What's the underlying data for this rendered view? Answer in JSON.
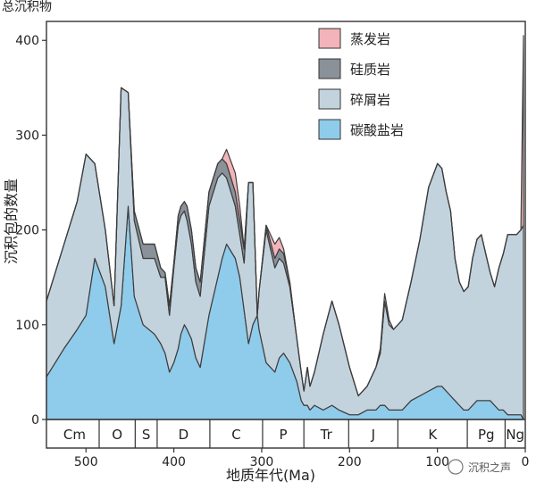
{
  "chart_data": {
    "type": "area",
    "title": "总沉积物",
    "xlabel": "地质年代(Ma)",
    "ylabel": "沉积包的数量",
    "xlim": [
      545,
      0
    ],
    "ylim": [
      0,
      420
    ],
    "xticks": [
      500,
      400,
      300,
      200,
      100,
      0
    ],
    "yticks": [
      0,
      100,
      200,
      300,
      400
    ],
    "xtick_labels": [
      "500",
      "400",
      "300",
      "200",
      "100",
      "0"
    ],
    "ytick_labels": [
      "0",
      "100",
      "200",
      "300",
      "400"
    ],
    "legend_position": "top-right",
    "x": [
      545,
      525,
      510,
      500,
      490,
      478,
      468,
      460,
      452,
      445,
      435,
      422,
      415,
      410,
      405,
      400,
      395,
      392,
      388,
      385,
      380,
      375,
      370,
      360,
      350,
      345,
      340,
      330,
      325,
      320,
      315,
      310,
      305,
      303,
      295,
      285,
      280,
      275,
      268,
      260,
      255,
      252,
      248,
      245,
      240,
      230,
      220,
      212,
      200,
      190,
      180,
      170,
      165,
      160,
      155,
      150,
      140,
      130,
      120,
      110,
      100,
      95,
      90,
      85,
      80,
      75,
      70,
      65,
      60,
      55,
      50,
      45,
      40,
      35,
      30,
      25,
      20,
      15,
      10,
      5,
      2
    ],
    "series": [
      {
        "name": "碳酸盐岩",
        "color": "#8fcbea",
        "values": [
          45,
          75,
          95,
          110,
          170,
          140,
          80,
          120,
          225,
          130,
          100,
          90,
          80,
          70,
          50,
          60,
          75,
          90,
          100,
          95,
          85,
          65,
          55,
          110,
          150,
          170,
          185,
          170,
          150,
          115,
          80,
          100,
          110,
          95,
          60,
          50,
          65,
          70,
          60,
          40,
          20,
          15,
          15,
          10,
          15,
          10,
          15,
          10,
          5,
          5,
          10,
          10,
          15,
          15,
          10,
          10,
          10,
          20,
          25,
          30,
          35,
          35,
          30,
          25,
          20,
          15,
          10,
          10,
          15,
          20,
          20,
          20,
          20,
          15,
          10,
          10,
          5,
          5,
          5,
          5,
          0
        ]
      },
      {
        "name": "碎屑岩",
        "color": "#c3d3de",
        "values": [
          80,
          110,
          135,
          170,
          100,
          60,
          40,
          230,
          120,
          80,
          70,
          80,
          70,
          80,
          60,
          100,
          130,
          125,
          120,
          115,
          100,
          80,
          75,
          115,
          105,
          90,
          70,
          55,
          45,
          50,
          170,
          150,
          0,
          40,
          140,
          110,
          105,
          95,
          80,
          45,
          30,
          15,
          40,
          25,
          35,
          80,
          110,
          90,
          50,
          20,
          25,
          45,
          55,
          110,
          90,
          85,
          95,
          125,
          165,
          215,
          235,
          230,
          210,
          195,
          150,
          130,
          125,
          130,
          155,
          170,
          175,
          155,
          135,
          125,
          150,
          165,
          190,
          190,
          190,
          195,
          205
        ]
      },
      {
        "name": "硅质岩",
        "color": "#8a9198",
        "values": [
          0,
          0,
          0,
          0,
          0,
          0,
          0,
          0,
          0,
          10,
          15,
          15,
          10,
          5,
          10,
          5,
          10,
          10,
          10,
          15,
          15,
          15,
          15,
          15,
          15,
          15,
          15,
          15,
          15,
          15,
          0,
          0,
          0,
          0,
          5,
          10,
          10,
          10,
          5,
          0,
          0,
          0,
          0,
          0,
          0,
          0,
          0,
          0,
          0,
          0,
          0,
          0,
          0,
          0,
          0,
          0,
          0,
          0,
          0,
          0,
          0,
          0,
          0,
          0,
          0,
          0,
          0,
          0,
          0,
          0,
          0,
          0,
          0,
          0,
          0,
          0,
          0,
          0,
          0,
          0,
          0
        ]
      },
      {
        "name": "蒸发岩",
        "color": "#f2b3b9",
        "values": [
          0,
          0,
          0,
          0,
          0,
          0,
          0,
          0,
          0,
          0,
          0,
          0,
          0,
          0,
          0,
          0,
          0,
          0,
          0,
          0,
          0,
          0,
          0,
          0,
          0,
          0,
          15,
          20,
          15,
          0,
          0,
          0,
          0,
          0,
          0,
          15,
          12,
          5,
          0,
          0,
          0,
          0,
          0,
          0,
          0,
          0,
          0,
          0,
          0,
          0,
          0,
          0,
          5,
          8,
          5,
          0,
          0,
          0,
          0,
          0,
          0,
          0,
          0,
          0,
          0,
          0,
          0,
          0,
          0,
          0,
          0,
          0,
          0,
          0,
          0,
          0,
          0,
          0,
          0,
          0,
          200
        ]
      }
    ],
    "total_label": "总沉积物",
    "periods": [
      {
        "label": "Cm",
        "start": 541,
        "end": 485
      },
      {
        "label": "O",
        "start": 485,
        "end": 444
      },
      {
        "label": "S",
        "start": 444,
        "end": 419
      },
      {
        "label": "D",
        "start": 419,
        "end": 359
      },
      {
        "label": "C",
        "start": 359,
        "end": 299
      },
      {
        "label": "P",
        "start": 299,
        "end": 252
      },
      {
        "label": "Tr",
        "start": 252,
        "end": 201
      },
      {
        "label": "J",
        "start": 201,
        "end": 145
      },
      {
        "label": "K",
        "start": 145,
        "end": 66
      },
      {
        "label": "Pg",
        "start": 66,
        "end": 23
      },
      {
        "label": "Ng",
        "start": 23,
        "end": 0
      }
    ],
    "watermark": "沉积之声"
  }
}
